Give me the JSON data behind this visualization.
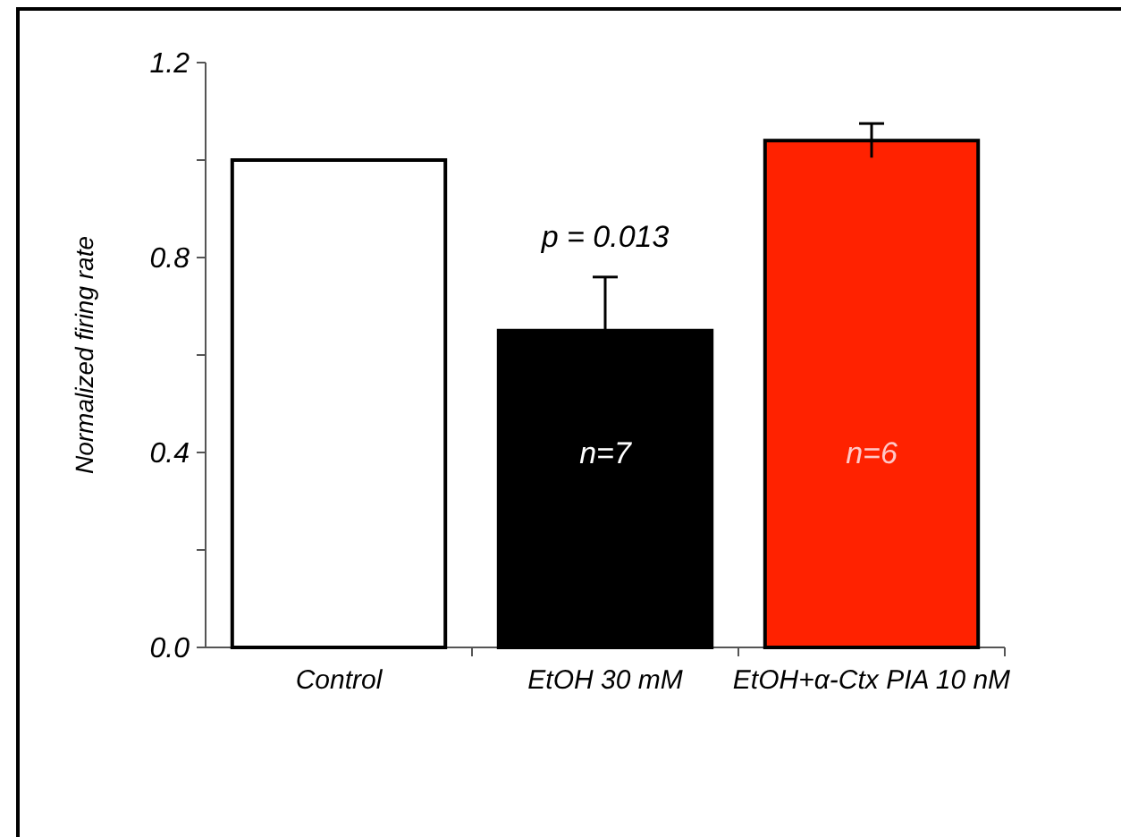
{
  "chart_data": {
    "type": "bar",
    "ylabel": "Normalized firing rate",
    "categories": [
      "Control",
      "EtOH 30 mM",
      "EtOH+α-Ctx PIA 10 nM"
    ],
    "values": [
      1.0,
      0.65,
      1.04
    ],
    "colors": [
      "#ffffff",
      "#000000",
      "#ff2200"
    ],
    "errors": [
      null,
      0.11,
      0.035
    ],
    "ylim": [
      0,
      1.2
    ],
    "yticks": [
      {
        "value": 0,
        "label": "0.0"
      },
      {
        "value": 0.2,
        "label": null
      },
      0.4,
      {
        "value": 0.6,
        "label": null
      },
      0.8,
      {
        "value": 1.0,
        "label": null
      },
      1.2
    ],
    "annotations": [
      "p = 0.013",
      "n=7",
      "n=6"
    ],
    "grid": false
  }
}
